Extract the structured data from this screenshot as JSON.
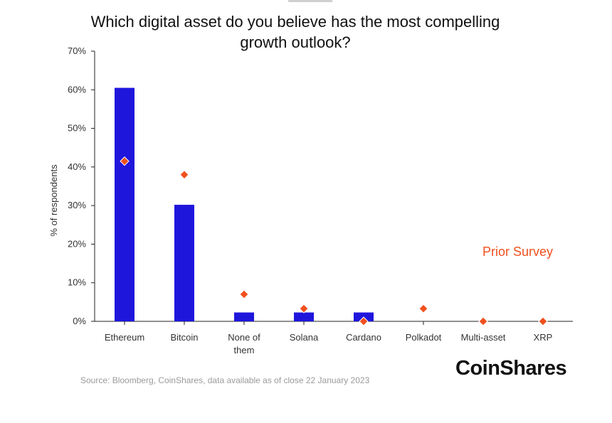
{
  "title_line1": "Which digital asset do you believe has the most compelling",
  "title_line2": "growth outlook?",
  "source": "Source: Bloomberg, CoinShares, data available as of close 22 January 2023",
  "logo": "CoinShares",
  "colors": {
    "bar": "#1f16dc",
    "marker": "#f0501e",
    "prior_label": "#f0501e"
  },
  "chart_data": {
    "type": "bar",
    "title": "Which digital asset do you believe has the most compelling growth outlook?",
    "ylabel": "% of respondents",
    "ylim": [
      0,
      70
    ],
    "yticks": [
      "0%",
      "10%",
      "20%",
      "30%",
      "40%",
      "50%",
      "60%",
      "70%"
    ],
    "grid": false,
    "categories": [
      [
        "Ethereum"
      ],
      [
        "Bitcoin"
      ],
      [
        "None of",
        "them"
      ],
      [
        "Solana"
      ],
      [
        "Cardano"
      ],
      [
        "Polkadot"
      ],
      [
        "Multi-asset"
      ],
      [
        "XRP"
      ]
    ],
    "series": [
      {
        "kind": "bar",
        "values": [
          60.5,
          30.2,
          2.3,
          2.3,
          2.3,
          0,
          0,
          0
        ]
      },
      {
        "kind": "marker",
        "name": "Prior Survey",
        "values": [
          41.5,
          38,
          7,
          3.3,
          0,
          3.3,
          0,
          0
        ]
      }
    ],
    "annotation": "Prior Survey"
  }
}
